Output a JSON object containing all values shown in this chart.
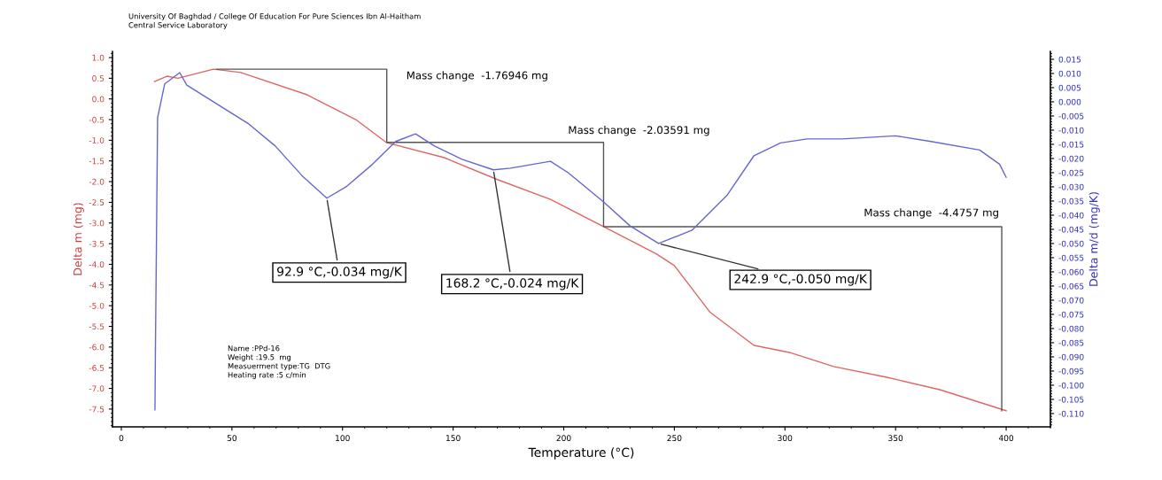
{
  "chart_data": {
    "type": "line",
    "title": "University Of Baghdad / College Of Education For Pure Sciences Ibn Al-Haitham",
    "subtitle": "Central Service Laboratory",
    "xlabel": "Temperature (°C)",
    "ylabel": "Delta m (mg)",
    "y2label": "Delta m/d (mg/K)",
    "xlim": [
      -4,
      420
    ],
    "xticks": [
      0,
      50,
      100,
      150,
      200,
      250,
      300,
      350,
      400
    ],
    "ylim": [
      -7.93,
      1.15
    ],
    "yticks": [
      {
        "value": 1,
        "label": "1.0"
      },
      0.5,
      {
        "value": 0,
        "label": "0.0"
      },
      -0.5,
      {
        "value": -1,
        "label": "-1.0"
      },
      -1.5,
      {
        "value": -2,
        "label": "-2.0"
      },
      -2.5,
      {
        "value": -3,
        "label": "-3.0"
      },
      -3.5,
      {
        "value": -4,
        "label": "-4.0"
      },
      -4.5,
      {
        "value": -5,
        "label": "-5.0"
      },
      -5.5,
      {
        "value": -6,
        "label": "-6.0"
      },
      -6.5,
      {
        "value": -7,
        "label": "-7.0"
      },
      -7.5
    ],
    "y2lim": [
      -0.1147,
      0.0178
    ],
    "y2ticks": [
      {
        "value": 0.015,
        "label": "0.015"
      },
      {
        "value": 0.01,
        "label": "0.010"
      },
      {
        "value": 0.005,
        "label": "0.005"
      },
      {
        "value": 0.0,
        "label": "0.000"
      },
      {
        "value": -0.005,
        "label": "-0.005"
      },
      {
        "value": -0.01,
        "label": "-0.010"
      },
      {
        "value": -0.015,
        "label": "-0.015"
      },
      {
        "value": -0.02,
        "label": "-0.020"
      },
      {
        "value": -0.025,
        "label": "-0.025"
      },
      {
        "value": -0.03,
        "label": "-0.030"
      },
      {
        "value": -0.035,
        "label": "-0.035"
      },
      {
        "value": -0.04,
        "label": "-0.040"
      },
      {
        "value": -0.045,
        "label": "-0.045"
      },
      {
        "value": -0.05,
        "label": "-0.050"
      },
      {
        "value": -0.055,
        "label": "-0.055"
      },
      {
        "value": -0.06,
        "label": "-0.060"
      },
      {
        "value": -0.065,
        "label": "-0.065"
      },
      {
        "value": -0.07,
        "label": "-0.070"
      },
      {
        "value": -0.075,
        "label": "-0.075"
      },
      {
        "value": -0.08,
        "label": "-0.080"
      },
      {
        "value": -0.085,
        "label": "-0.085"
      },
      {
        "value": -0.09,
        "label": "-0.090"
      },
      {
        "value": -0.095,
        "label": "-0.095"
      },
      {
        "value": -0.1,
        "label": "-0.100"
      },
      {
        "value": -0.105,
        "label": "-0.105"
      },
      {
        "value": -0.11,
        "label": "-0.110"
      }
    ],
    "grid": false,
    "legend": false,
    "marker": "none",
    "line_style": "solid",
    "series": [
      {
        "axis": "y",
        "color": "#e06666",
        "x": [
          15,
          20.6,
          25.6,
          41.6,
          54,
          84,
          106,
          120,
          146,
          170,
          194,
          218,
          242,
          250,
          266,
          286,
          302,
          322,
          346,
          370,
          400
        ],
        "values": [
          0.42,
          0.55,
          0.5,
          0.72,
          0.64,
          0.1,
          -0.5,
          -1.06,
          -1.42,
          -1.95,
          -2.43,
          -3.09,
          -3.75,
          -4.03,
          -5.15,
          -5.96,
          -6.13,
          -6.47,
          -6.73,
          -7.03,
          -7.54
        ]
      },
      {
        "axis": "y2",
        "color": "#6666d0",
        "x": [
          15.2,
          15.4,
          16.4,
          19.6,
          26.4,
          29.6,
          41.6,
          57.6,
          69.6,
          81.6,
          92.9,
          101.6,
          113.6,
          124,
          133,
          141.6,
          154,
          168.2,
          176,
          194,
          202,
          218,
          230,
          242.9,
          258,
          274,
          286,
          298,
          310,
          326,
          350,
          366,
          388,
          397,
          400
        ],
        "values": [
          -0.1087,
          -0.089,
          -0.0056,
          0.0063,
          0.0103,
          0.0059,
          0.0,
          -0.0078,
          -0.0156,
          -0.026,
          -0.034,
          -0.03,
          -0.022,
          -0.014,
          -0.0113,
          -0.0156,
          -0.0203,
          -0.024,
          -0.0234,
          -0.021,
          -0.025,
          -0.0353,
          -0.0438,
          -0.05,
          -0.0453,
          -0.0328,
          -0.019,
          -0.0145,
          -0.0131,
          -0.0131,
          -0.012,
          -0.014,
          -0.017,
          -0.022,
          -0.0266
        ],
        "value_labels": [
          null,
          null,
          null,
          null,
          null,
          null,
          null,
          null,
          null,
          null,
          "92.9 °C,-0.034 mg/K",
          null,
          null,
          null,
          null,
          null,
          null,
          "168.2 °C,-0.024 mg/K",
          null,
          null,
          null,
          null,
          null,
          "242.9 °C,-0.050 mg/K",
          null,
          null,
          null,
          null,
          null,
          null,
          null,
          null,
          null,
          null,
          null
        ]
      },
      {
        "axis": "y",
        "color": "#555555",
        "x": [
          43,
          120,
          120,
          218,
          218,
          398,
          398
        ],
        "values": [
          0.72,
          0.72,
          -1.05,
          -1.05,
          -3.09,
          -3.09,
          -7.54
        ]
      }
    ],
    "annotations": [
      {
        "text": "Mass change  -1.76946 mg",
        "x": 120,
        "y": 0.72
      },
      {
        "text": "Mass change  -2.03591 mg",
        "x": 218,
        "y": -1.05
      },
      {
        "text": "Mass change  -4.4757 mg",
        "x": 398,
        "y": -3.09
      },
      "Name :PPd-16",
      "Weight :19.5  mg",
      "Measuerment type:TG  DTG",
      "Heating rate :5 c/min"
    ]
  }
}
